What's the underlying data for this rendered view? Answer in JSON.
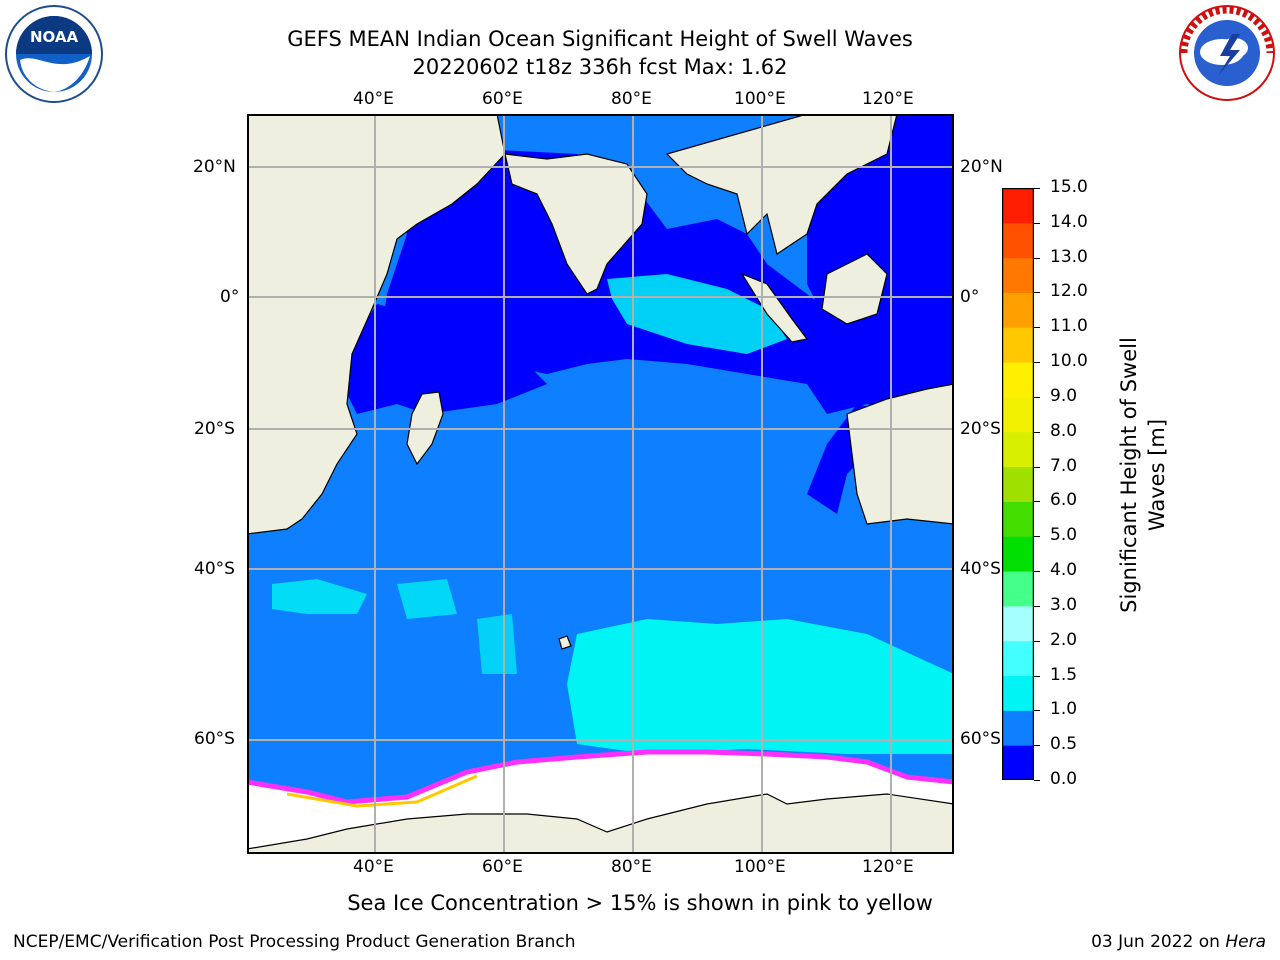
{
  "header": {
    "title_line1": "GEFS MEAN Indian Ocean Significant Height of Swell Waves",
    "title_line2": "20220602 t18z 336h fcst   Max: 1.62"
  },
  "logos": {
    "left": {
      "icon": "noaa-logo-icon",
      "text": "NOAA"
    },
    "right": {
      "icon": "nws-logo-icon",
      "ring_text": "NATIONAL WEATHER SERVICE"
    }
  },
  "map": {
    "lon_labels": [
      "40°E",
      "60°E",
      "80°E",
      "100°E",
      "120°E"
    ],
    "lat_labels_left": [
      "20°N",
      "0°",
      "20°S",
      "40°S",
      "60°S"
    ],
    "lat_labels_right": [
      "20°N",
      "0°",
      "20°S",
      "40°S",
      "60°S"
    ],
    "colors": {
      "land": "#efefdf",
      "ocean_low": "#0000ff",
      "ocean_mid": "#0d7fff",
      "ocean_high": "#00f4f4",
      "ice": "#ffffff",
      "ice_edge": "#ff30ff",
      "grid": "#b0b0b0"
    }
  },
  "colorbar": {
    "title_line1": "Significant Height of Swell",
    "title_line2": "Waves [m]",
    "ticks": [
      "0.0",
      "0.5",
      "1.0",
      "1.5",
      "2.0",
      "3.0",
      "4.0",
      "5.0",
      "6.0",
      "7.0",
      "8.0",
      "9.0",
      "10.0",
      "11.0",
      "12.0",
      "13.0",
      "14.0",
      "15.0"
    ],
    "colors": [
      "#0000ff",
      "#0d7fff",
      "#00f4f4",
      "#44ffff",
      "#a6ffff",
      "#44ff88",
      "#00e000",
      "#44dd00",
      "#a0e000",
      "#d8f000",
      "#f0f000",
      "#fff000",
      "#ffc800",
      "#ffa000",
      "#ff7800",
      "#ff5000",
      "#ff1e00"
    ]
  },
  "note": "Sea Ice Concentration > 15% is shown in pink to yellow",
  "footer": {
    "left": "NCEP/EMC/Verification Post Processing Product Generation Branch",
    "right_date": "03 Jun 2022 on ",
    "right_host": "Hera"
  }
}
